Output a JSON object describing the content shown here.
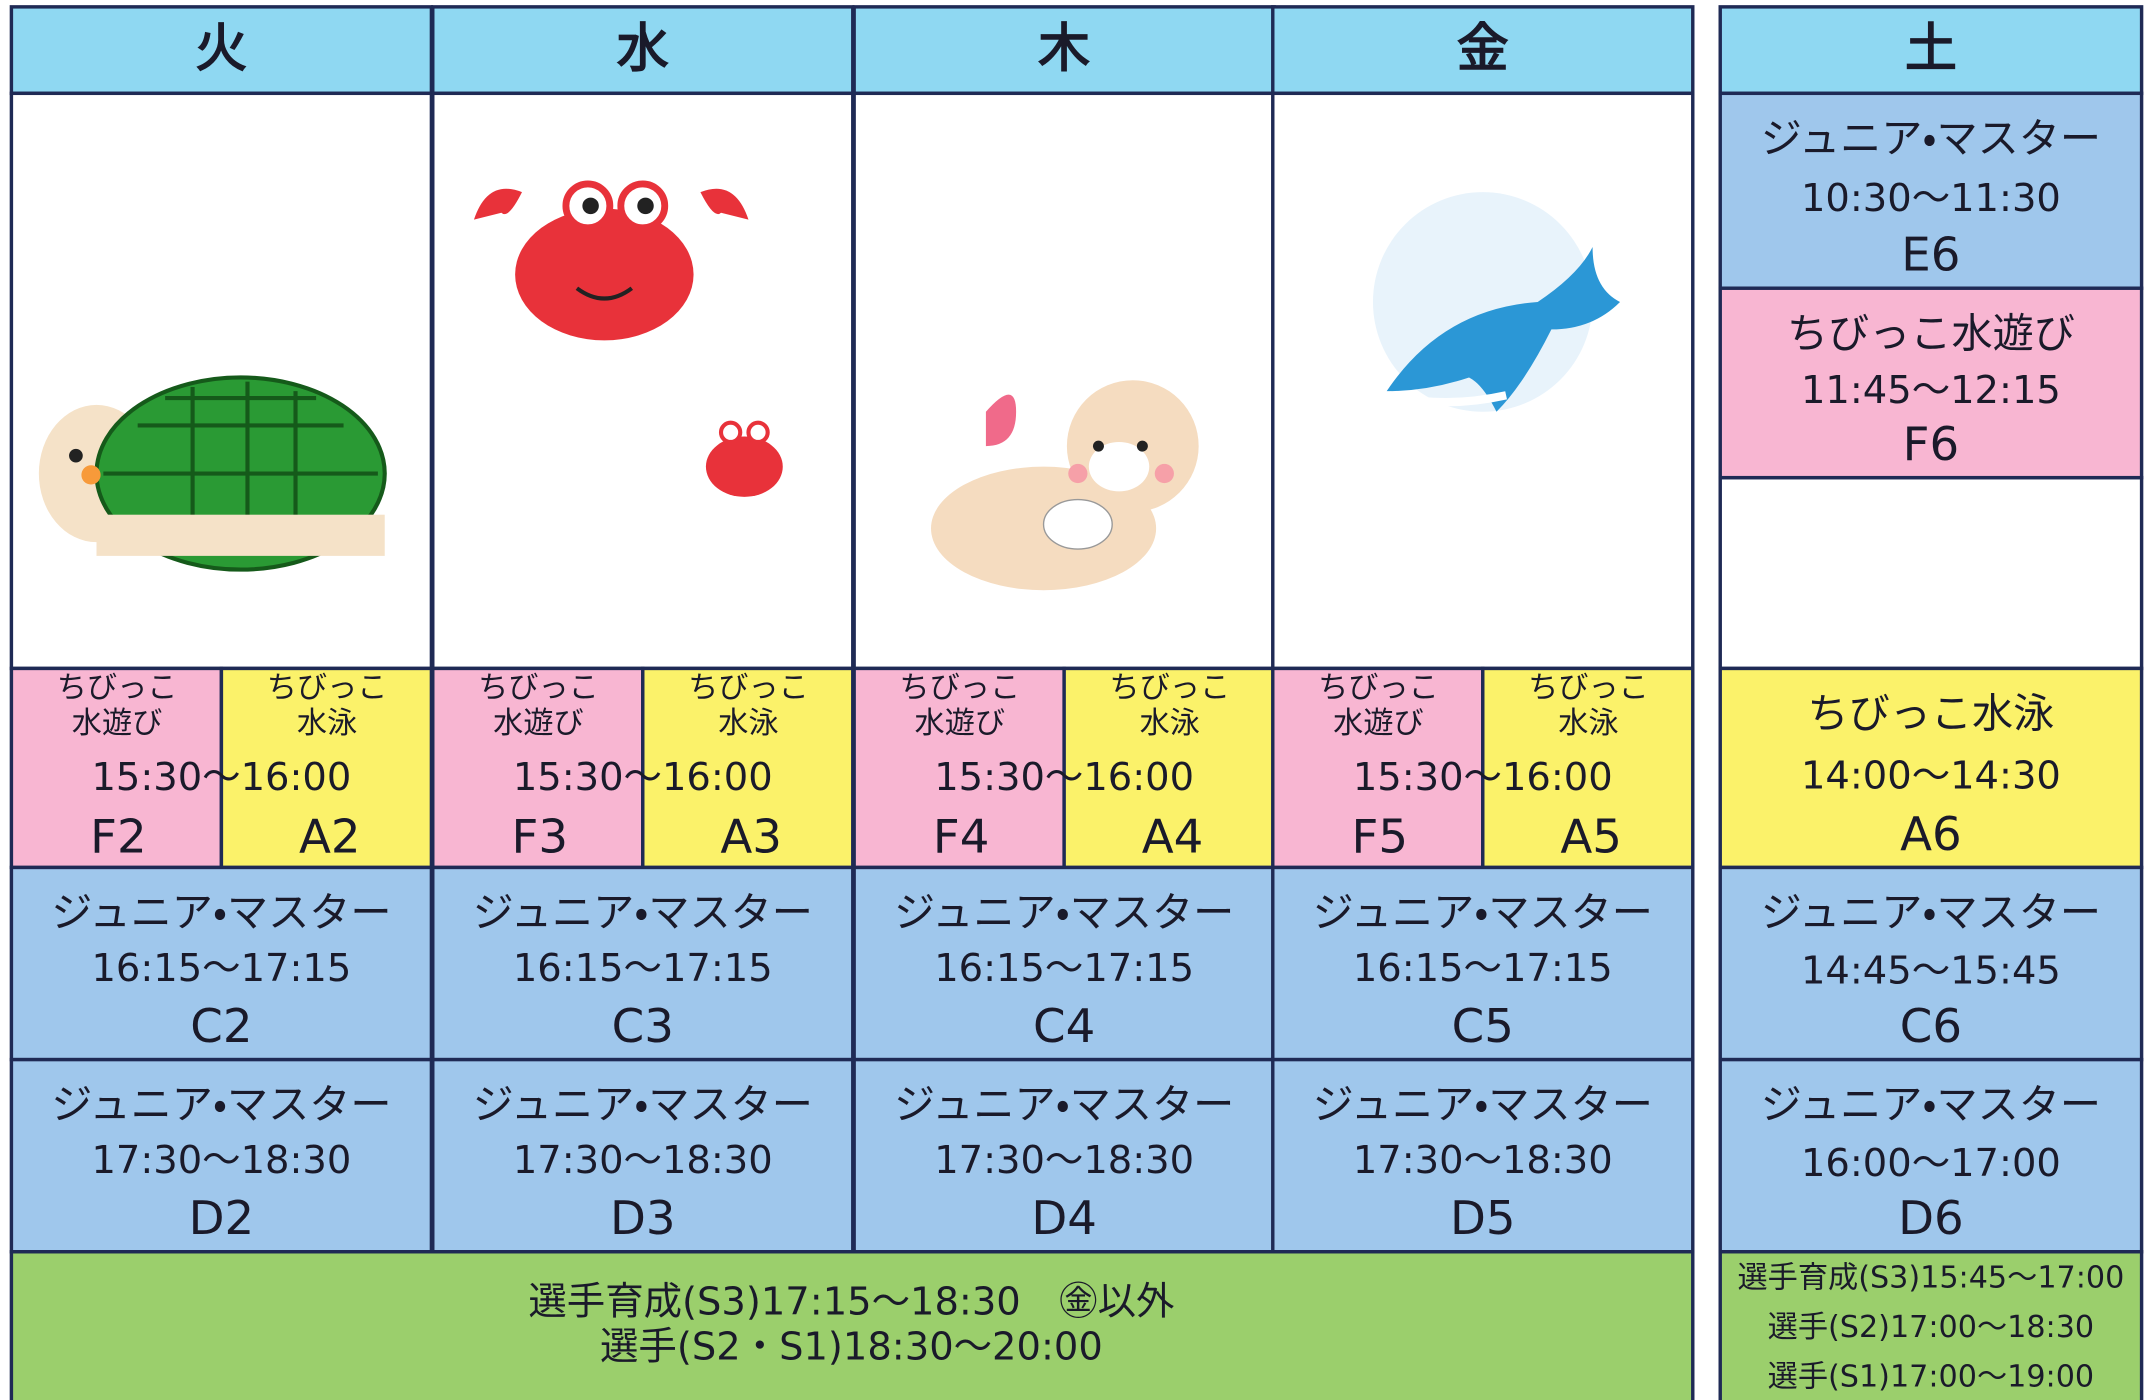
{
  "header": {
    "days": [
      "火",
      "水",
      "木",
      "金",
      "土"
    ]
  },
  "weekdays": [
    {
      "kids_left": [
        "ちびっこ",
        "水遊び"
      ],
      "kids_right": [
        "ちびっこ",
        "水泳"
      ],
      "kids_time": "15:30～16:00",
      "kids_codes": [
        "F2",
        "A2"
      ],
      "classes": [
        {
          "name": "ジュニア・マスター",
          "time": "16:15～17:15",
          "code": "C2"
        },
        {
          "name": "ジュニア・マスター",
          "time": "17:30～18:30",
          "code": "D2"
        }
      ]
    },
    {
      "kids_left": [
        "ちびっこ",
        "水遊び"
      ],
      "kids_right": [
        "ちびっこ",
        "水泳"
      ],
      "kids_time": "15:30～16:00",
      "kids_codes": [
        "F3",
        "A3"
      ],
      "classes": [
        {
          "name": "ジュニア・マスター",
          "time": "16:15～17:15",
          "code": "C3"
        },
        {
          "name": "ジュニア・マスター",
          "time": "17:30～18:30",
          "code": "D3"
        }
      ]
    },
    {
      "kids_left": [
        "ちびっこ",
        "水遊び"
      ],
      "kids_right": [
        "ちびっこ",
        "水泳"
      ],
      "kids_time": "15:30～16:00",
      "kids_codes": [
        "F4",
        "A4"
      ],
      "classes": [
        {
          "name": "ジュニア・マスター",
          "time": "16:15～17:15",
          "code": "C4"
        },
        {
          "name": "ジュニア・マスター",
          "time": "17:30～18:30",
          "code": "D4"
        }
      ]
    },
    {
      "kids_left": [
        "ちびっこ",
        "水遊び"
      ],
      "kids_right": [
        "ちびっこ",
        "水泳"
      ],
      "kids_time": "15:30～16:00",
      "kids_codes": [
        "F5",
        "A5"
      ],
      "classes": [
        {
          "name": "ジュニア・マスター",
          "time": "16:15～17:15",
          "code": "C5"
        },
        {
          "name": "ジュニア・マスター",
          "time": "17:30～18:30",
          "code": "D5"
        }
      ]
    }
  ],
  "weekday_footer": [
    "選手育成(S3)17:15～18:30　㊎以外",
    "選手(S2・S1)18:30～20:00"
  ],
  "saturday": {
    "classes": [
      {
        "name": "ジュニア・マスター",
        "time": "10:30～11:30",
        "code": "E6"
      },
      {
        "name": "ちびっこ水遊び",
        "time": "11:45～12:15",
        "code": "F6"
      },
      {
        "name": "ちびっこ水泳",
        "time": "14:00～14:30",
        "code": "A6"
      },
      {
        "name": "ジュニア・マスター",
        "time": "14:45～15:45",
        "code": "C6"
      },
      {
        "name": "ジュニア・マスター",
        "time": "16:00～17:00",
        "code": "D6"
      }
    ],
    "footer": [
      "選手育成(S3)15:45～17:00",
      "選手(S2)17:00～18:30",
      "選手(S1)17:00～19:00"
    ]
  }
}
